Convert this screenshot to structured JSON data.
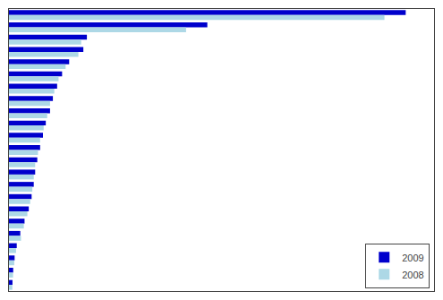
{
  "chart_data": {
    "type": "bar",
    "orientation": "horizontal",
    "categories": [
      null,
      null,
      null,
      null,
      null,
      null,
      null,
      null,
      null,
      null,
      null,
      null,
      null,
      null,
      null,
      null,
      null,
      null,
      null,
      null,
      null,
      null,
      null
    ],
    "series": [
      {
        "name": "2009",
        "color": "#0000CC",
        "values": [
          56000,
          28000,
          11000,
          10500,
          8500,
          7500,
          6800,
          6200,
          5800,
          5200,
          4800,
          4400,
          4000,
          3700,
          3500,
          3200,
          2800,
          2200,
          1600,
          1100,
          800,
          600,
          500
        ]
      },
      {
        "name": "2008",
        "color": "#ADD8E6",
        "values": [
          53000,
          25000,
          10200,
          9800,
          8000,
          7000,
          6400,
          5800,
          5400,
          4900,
          4400,
          4100,
          3700,
          3500,
          3300,
          3000,
          2600,
          2100,
          1700,
          1000,
          750,
          580,
          480
        ]
      }
    ],
    "xlim": [
      0,
      60000
    ],
    "xticks": [],
    "grid": false,
    "legend": "lower right",
    "tick_labels": false
  }
}
